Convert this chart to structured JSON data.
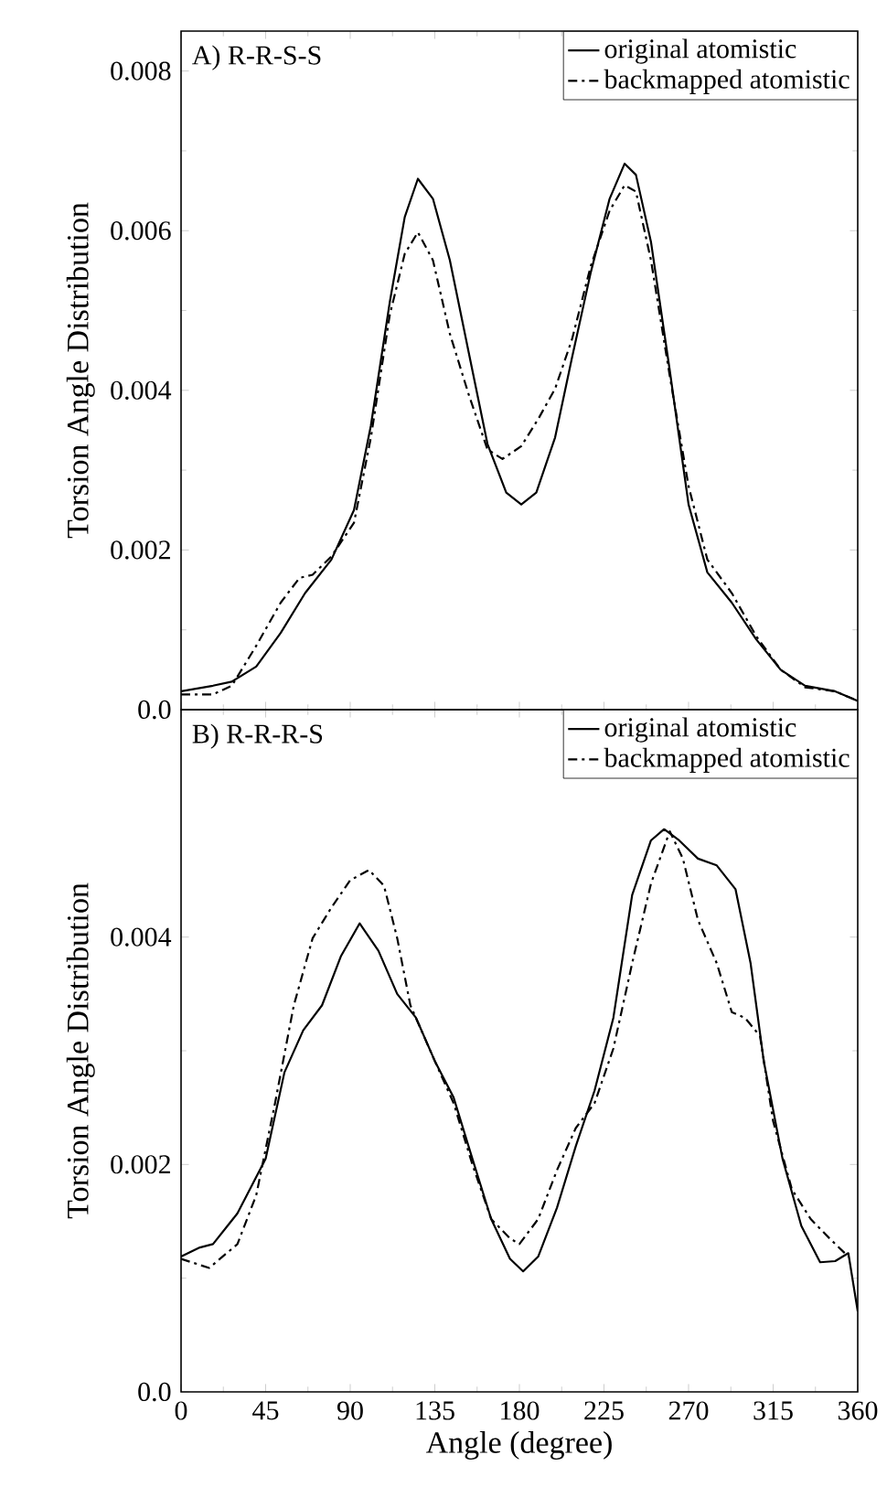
{
  "chart_data": [
    {
      "type": "line",
      "ylabel": "Torsion Angle Distribution",
      "annotations": [
        "A) R-R-S-S"
      ],
      "xlim": [
        0,
        360
      ],
      "ylim": [
        0,
        0.0085
      ],
      "xticks": [
        0,
        45,
        90,
        135,
        180,
        225,
        270,
        315,
        360
      ],
      "yticks": [
        {
          "value": 0,
          "label": "0.0"
        },
        0.002,
        0.004,
        0.006,
        0.008
      ],
      "tick_labels": "y",
      "legend": "top right",
      "series": [
        {
          "name": "original atomistic",
          "color": "#000000",
          "line_style": "solid",
          "x": [
            0,
            17,
            27,
            40,
            53,
            66,
            80,
            92,
            101,
            111,
            119,
            126,
            134,
            143,
            153,
            163,
            173,
            181,
            189,
            199,
            208,
            218,
            228,
            236,
            242,
            250,
            260,
            270,
            280,
            293,
            306,
            319,
            332,
            348,
            360
          ],
          "values": [
            0.00023,
            0.0003,
            0.00035,
            0.00054,
            0.00096,
            0.00146,
            0.00188,
            0.0025,
            0.00356,
            0.0051,
            0.00617,
            0.00665,
            0.0064,
            0.00563,
            0.00448,
            0.00333,
            0.00272,
            0.00257,
            0.00272,
            0.00341,
            0.00441,
            0.00548,
            0.0064,
            0.00684,
            0.0067,
            0.00586,
            0.00425,
            0.00257,
            0.00172,
            0.00134,
            0.00088,
            0.0005,
            0.0003,
            0.00023,
            0.00011
          ]
        },
        {
          "name": "backmapped atomistic",
          "color": "#000000",
          "line_style": "dashed",
          "x": [
            0,
            17,
            27,
            40,
            53,
            63,
            70,
            80,
            92,
            101,
            111,
            119,
            126,
            134,
            143,
            153,
            163,
            171,
            181,
            190,
            199,
            208,
            218,
            228,
            236,
            242,
            250,
            260,
            270,
            280,
            293,
            306,
            319,
            332,
            348,
            360
          ],
          "values": [
            0.00019,
            0.00019,
            0.0003,
            0.0008,
            0.00134,
            0.00165,
            0.00169,
            0.00192,
            0.00234,
            0.00341,
            0.00494,
            0.00571,
            0.00598,
            0.00563,
            0.00471,
            0.00395,
            0.00326,
            0.00314,
            0.0033,
            0.00364,
            0.00402,
            0.00464,
            0.00556,
            0.00625,
            0.00657,
            0.00649,
            0.00563,
            0.00418,
            0.0028,
            0.00188,
            0.00146,
            0.00092,
            0.0005,
            0.00028,
            0.00023,
            0.00011
          ]
        }
      ]
    },
    {
      "type": "line",
      "xlabel": "Angle (degree)",
      "ylabel": "Torsion Angle Distribution",
      "annotations": [
        "B) R-R-R-S"
      ],
      "xlim": [
        0,
        360
      ],
      "ylim": [
        0,
        0.006
      ],
      "xticks": [
        0,
        45,
        90,
        135,
        180,
        225,
        270,
        315,
        360
      ],
      "yticks": [
        {
          "value": 0,
          "label": "0.0"
        },
        0.002,
        0.004
      ],
      "legend": "top right",
      "series": [
        {
          "name": "original atomistic",
          "color": "#000000",
          "line_style": "solid",
          "x": [
            0,
            10,
            17,
            30,
            45,
            55,
            65,
            75,
            85,
            95,
            105,
            115,
            125,
            135,
            145,
            155,
            165,
            175,
            182,
            190,
            200,
            210,
            220,
            230,
            240,
            250,
            257,
            265,
            275,
            285,
            295,
            303,
            310,
            320,
            330,
            340,
            348,
            355,
            360
          ],
          "values": [
            0.00119,
            0.00127,
            0.0013,
            0.00157,
            0.00205,
            0.00281,
            0.00318,
            0.0034,
            0.00383,
            0.00412,
            0.00388,
            0.0035,
            0.00329,
            0.00291,
            0.00259,
            0.00205,
            0.00152,
            0.00117,
            0.00106,
            0.00119,
            0.00162,
            0.00216,
            0.00265,
            0.00329,
            0.00437,
            0.00485,
            0.00495,
            0.00485,
            0.00469,
            0.00463,
            0.00442,
            0.00377,
            0.00291,
            0.00205,
            0.00146,
            0.00114,
            0.00115,
            0.00122,
            0.00071
          ]
        },
        {
          "name": "backmapped atomistic",
          "color": "#000000",
          "line_style": "dashed",
          "x": [
            0,
            15,
            30,
            40,
            50,
            60,
            70,
            80,
            90,
            100,
            108,
            115,
            122,
            135,
            145,
            155,
            165,
            175,
            180,
            190,
            200,
            210,
            220,
            230,
            240,
            250,
            260,
            267,
            275,
            285,
            293,
            300,
            308,
            315,
            325,
            335,
            345,
            355
          ],
          "values": [
            0.00117,
            0.00109,
            0.0013,
            0.00173,
            0.00254,
            0.0034,
            0.00399,
            0.00426,
            0.0045,
            0.00459,
            0.00445,
            0.00399,
            0.0034,
            0.00291,
            0.00254,
            0.002,
            0.00152,
            0.00135,
            0.0013,
            0.00152,
            0.00195,
            0.00232,
            0.00254,
            0.00302,
            0.00377,
            0.00447,
            0.00493,
            0.00469,
            0.00415,
            0.00377,
            0.00334,
            0.00329,
            0.00313,
            0.00238,
            0.00178,
            0.00152,
            0.00135,
            0.00119
          ]
        }
      ]
    }
  ]
}
